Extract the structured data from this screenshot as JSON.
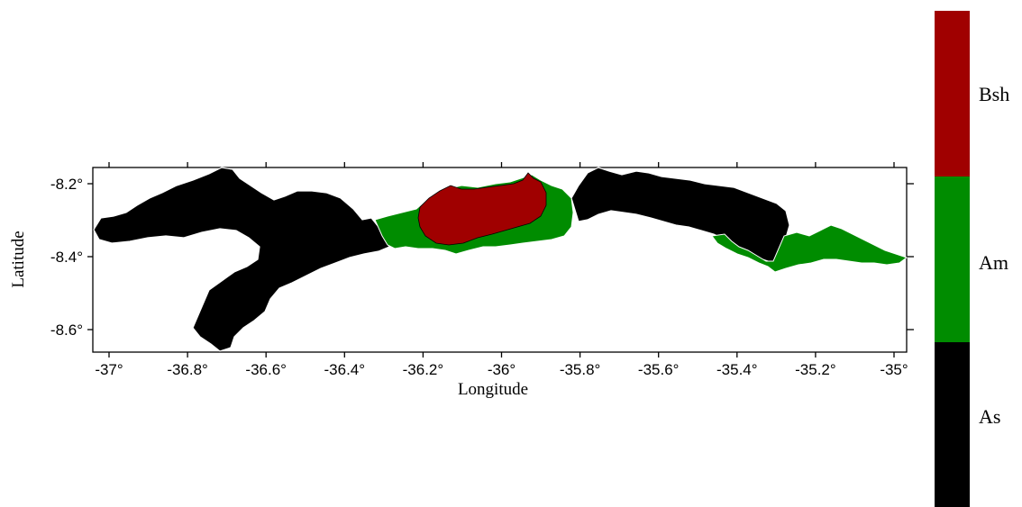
{
  "map": {
    "xlabel": "Longitude",
    "ylabel": "Latitude",
    "x_ticks": [
      "-37°",
      "-36.8°",
      "-36.6°",
      "-36.4°",
      "-36.2°",
      "-36°",
      "-35.8°",
      "-35.6°",
      "-35.4°",
      "-35.2°",
      "-35°"
    ],
    "y_ticks": [
      "-8.2°",
      "-8.4°",
      "-8.6°"
    ],
    "extent": {
      "lon": [
        -37.05,
        -34.97
      ],
      "lat": [
        -8.67,
        -8.15
      ]
    }
  },
  "legend": {
    "classes": [
      {
        "label": "Bsh",
        "color": "#a00000"
      },
      {
        "label": "Am",
        "color": "#008c00"
      },
      {
        "label": "As",
        "color": "#000000"
      }
    ]
  },
  "colors": {
    "Bsh": "#a00000",
    "Am": "#008c00",
    "As": "#000000"
  }
}
